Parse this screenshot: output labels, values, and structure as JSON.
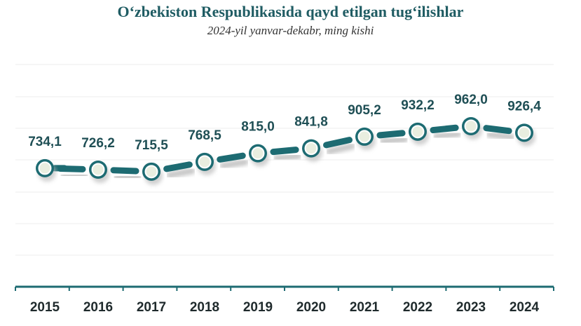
{
  "header": {
    "title": "O‘zbekiston Respublikasida qayd etilgan tug‘ilishlar",
    "subtitle": "2024-yil yanvar-dekabr, ming kishi"
  },
  "colors": {
    "line": "#1d6b72",
    "marker_fill": "#f6f7ee",
    "marker_stroke": "#1d6b72",
    "axis": "#1d6b72",
    "grid": "#ececec",
    "label": "#1f4f55"
  },
  "chart_data": {
    "type": "line",
    "title": "O‘zbekiston Respublikasida qayd etilgan tug‘ilishlar",
    "subtitle": "2024-yil yanvar-dekabr, ming kishi",
    "categories": [
      "2015",
      "2016",
      "2017",
      "2018",
      "2019",
      "2020",
      "2021",
      "2022",
      "2023",
      "2024"
    ],
    "values": [
      734.1,
      726.2,
      715.5,
      768.5,
      815.0,
      841.8,
      905.2,
      932.2,
      962.0,
      926.4
    ],
    "value_labels": [
      "734,1",
      "726,2",
      "715,5",
      "768,5",
      "815,0",
      "841,8",
      "905,2",
      "932,2",
      "962,0",
      "926,4"
    ],
    "line_style": "dashed",
    "markers": true,
    "grid": true,
    "legend": "none"
  }
}
